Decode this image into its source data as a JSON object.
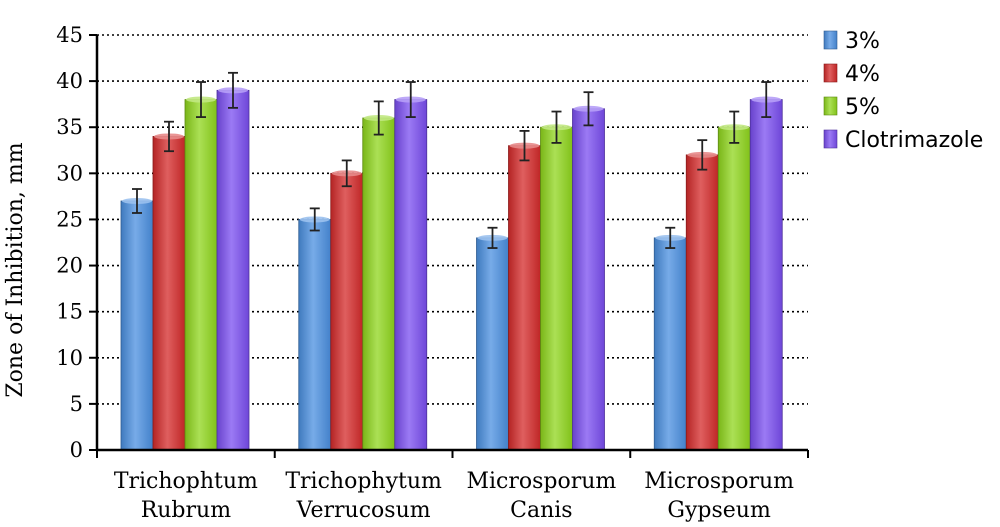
{
  "chart_data": {
    "type": "bar",
    "title": "",
    "xlabel": "",
    "ylabel": "Zone of Inhibition, mm",
    "ylim": [
      0,
      45
    ],
    "yticks": [
      0,
      5,
      10,
      15,
      20,
      25,
      30,
      35,
      40,
      45
    ],
    "grid": "horizontal-dotted",
    "legend_position": "right",
    "categories": [
      [
        "Trichophtum",
        "Rubrum"
      ],
      [
        "Trichophytum",
        "Verrucosum"
      ],
      [
        "Microsporum",
        "Canis"
      ],
      [
        "Microsporum",
        "Gypseum"
      ]
    ],
    "series": [
      {
        "name": "3%",
        "color": "#4a8fe0",
        "values": [
          27,
          25,
          23,
          23
        ],
        "errors": [
          1.3,
          1.2,
          1.1,
          1.1
        ]
      },
      {
        "name": "4%",
        "color": "#d42a2a",
        "values": [
          34,
          30,
          33,
          32
        ],
        "errors": [
          1.6,
          1.4,
          1.6,
          1.6
        ]
      },
      {
        "name": "5%",
        "color": "#8fd61c",
        "values": [
          38,
          36,
          35,
          35
        ],
        "errors": [
          1.9,
          1.8,
          1.7,
          1.7
        ]
      },
      {
        "name": "Clotrimazole",
        "color": "#7a4ef0",
        "values": [
          39,
          38,
          37,
          38
        ],
        "errors": [
          1.9,
          1.9,
          1.8,
          1.9
        ]
      }
    ]
  }
}
